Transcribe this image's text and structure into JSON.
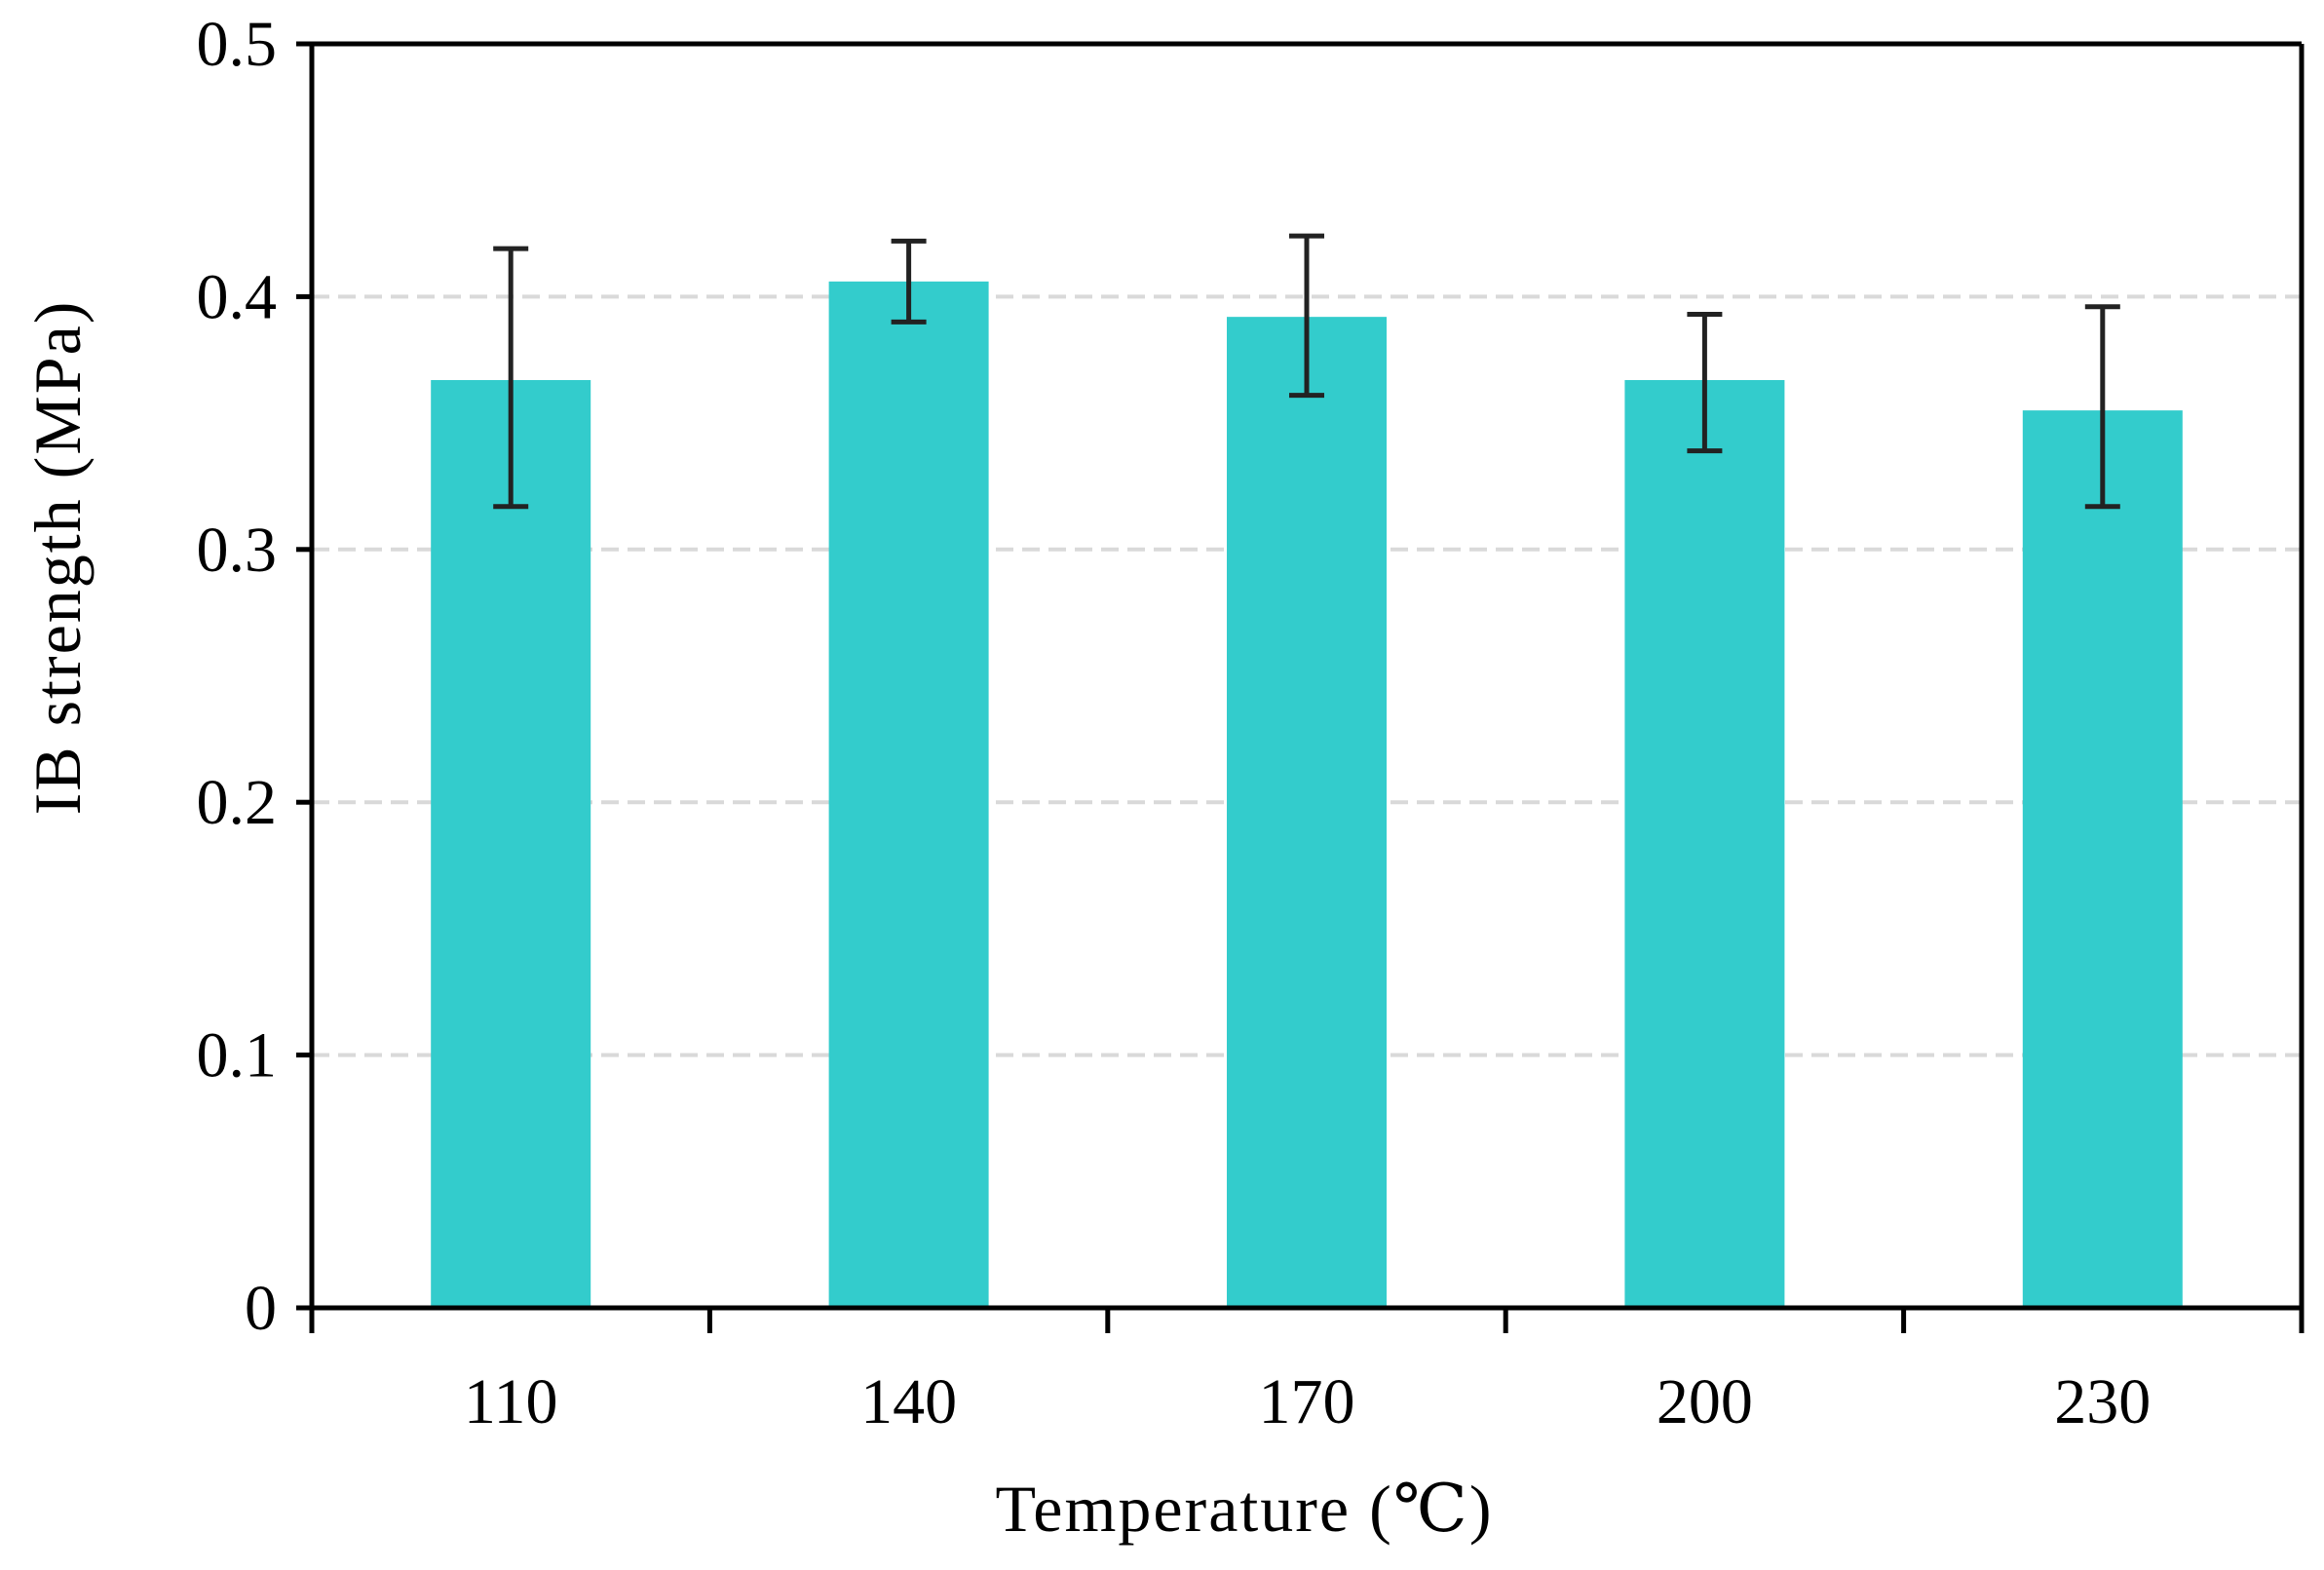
{
  "chart_data": {
    "type": "bar",
    "title": "",
    "xlabel": "Temperature (℃)",
    "ylabel": "IB strength (MPa)",
    "categories": [
      "110",
      "140",
      "170",
      "200",
      "230"
    ],
    "values": [
      0.367,
      0.406,
      0.392,
      0.367,
      0.355
    ],
    "error_upper": [
      0.419,
      0.422,
      0.424,
      0.393,
      0.396
    ],
    "error_lower": [
      0.317,
      0.39,
      0.361,
      0.339,
      0.317
    ],
    "ylim": [
      0,
      0.5
    ],
    "yticks": [
      "0",
      "0.1",
      "0.2",
      "0.3",
      "0.4",
      "0.5"
    ],
    "ytick_values": [
      0,
      0.1,
      0.2,
      0.3,
      0.4,
      0.5
    ],
    "grid": true,
    "legend": "none",
    "colors": {
      "bar": "#33CCCC",
      "error_bar": "#222222",
      "grid": "#D9D9D9",
      "axis": "#000000"
    }
  }
}
